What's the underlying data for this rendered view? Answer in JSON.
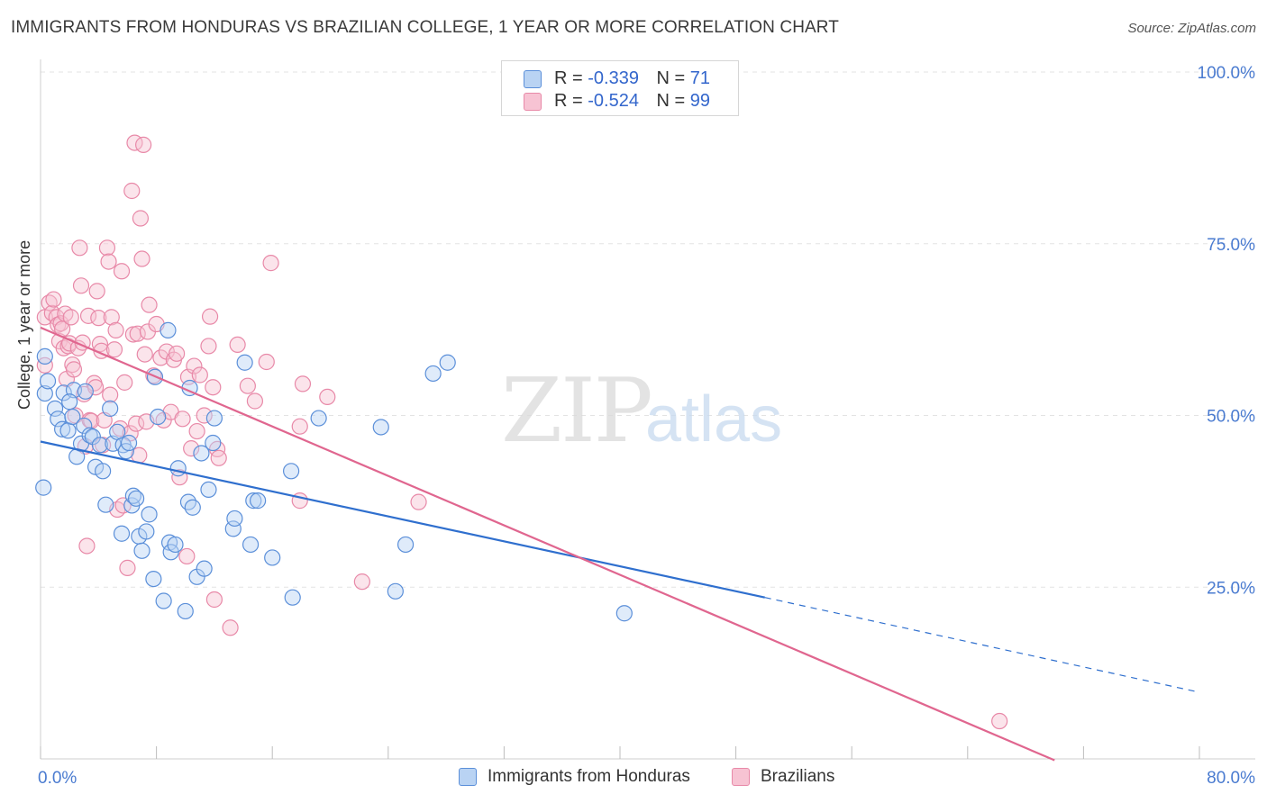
{
  "title": "IMMIGRANTS FROM HONDURAS VS BRAZILIAN COLLEGE, 1 YEAR OR MORE CORRELATION CHART",
  "source": "Source: ZipAtlas.com",
  "watermark": {
    "zip": "ZIP",
    "atlas": "atlas"
  },
  "colors": {
    "blue": "#5b8fd9",
    "blue_fill": "#b9d3f3",
    "blue_line": "#2f6fce",
    "pink": "#e889a8",
    "pink_fill": "#f7c3d3",
    "pink_line": "#e0668f",
    "axis_text": "#4a7bd0",
    "grid": "#e3e3e3"
  },
  "legend": {
    "rows": [
      {
        "r_label": "R = ",
        "r_value": "-0.339",
        "n_label": "N = ",
        "n_value": "71"
      },
      {
        "r_label": "R = ",
        "r_value": "-0.524",
        "n_label": "N = ",
        "n_value": "99"
      }
    ]
  },
  "bottom_legend": {
    "series1": "Immigrants from Honduras",
    "series2": "Brazilians"
  },
  "chart_data": {
    "type": "scatter",
    "title": "IMMIGRANTS FROM HONDURAS VS BRAZILIAN COLLEGE, 1 YEAR OR MORE CORRELATION CHART",
    "xlabel": "",
    "ylabel": "College, 1 year or more",
    "xlim": [
      0,
      80
    ],
    "ylim": [
      0,
      100
    ],
    "x_tick_labels": [
      "0.0%",
      "80.0%"
    ],
    "y_tick_labels": [
      "25.0%",
      "50.0%",
      "75.0%",
      "100.0%"
    ],
    "y_ticks": [
      25,
      50,
      75,
      100
    ],
    "x_minor_ticks": [
      0,
      8,
      16,
      24,
      32,
      40,
      48,
      56,
      64,
      72,
      80
    ],
    "grid": true,
    "legend_position": "top-center",
    "series": [
      {
        "name": "Immigrants from Honduras",
        "r": -0.339,
        "n": 71,
        "trend": {
          "x0": 0,
          "y0": 46.2,
          "x1": 50,
          "y1": 23.5,
          "dashed_to_x": 80,
          "dashed_to_y": 9.7
        },
        "points": [
          [
            0.3,
            58.6
          ],
          [
            0.3,
            53.2
          ],
          [
            0.5,
            55.0
          ],
          [
            1.0,
            51.0
          ],
          [
            1.2,
            49.5
          ],
          [
            1.5,
            48.0
          ],
          [
            1.6,
            53.3
          ],
          [
            1.9,
            47.8
          ],
          [
            2.2,
            49.8
          ],
          [
            2.3,
            53.7
          ],
          [
            2.5,
            44.0
          ],
          [
            2.8,
            45.9
          ],
          [
            3.0,
            48.5
          ],
          [
            3.1,
            53.5
          ],
          [
            3.4,
            47.1
          ],
          [
            3.6,
            46.9
          ],
          [
            3.8,
            42.5
          ],
          [
            4.1,
            45.7
          ],
          [
            4.3,
            41.9
          ],
          [
            4.5,
            37.0
          ],
          [
            4.8,
            51.0
          ],
          [
            5.0,
            45.9
          ],
          [
            5.3,
            47.6
          ],
          [
            5.6,
            32.8
          ],
          [
            5.7,
            45.7
          ],
          [
            5.9,
            44.8
          ],
          [
            6.1,
            46.0
          ],
          [
            6.3,
            36.9
          ],
          [
            6.4,
            38.3
          ],
          [
            6.6,
            37.9
          ],
          [
            6.8,
            32.4
          ],
          [
            7.0,
            30.3
          ],
          [
            7.3,
            33.1
          ],
          [
            7.5,
            35.6
          ],
          [
            7.8,
            26.2
          ],
          [
            7.9,
            55.6
          ],
          [
            8.1,
            49.8
          ],
          [
            8.5,
            23.0
          ],
          [
            8.8,
            62.4
          ],
          [
            8.9,
            31.5
          ],
          [
            9.0,
            30.1
          ],
          [
            9.3,
            31.2
          ],
          [
            9.5,
            42.3
          ],
          [
            10.0,
            21.5
          ],
          [
            10.2,
            37.4
          ],
          [
            10.3,
            54.0
          ],
          [
            10.5,
            36.6
          ],
          [
            10.8,
            26.5
          ],
          [
            11.1,
            44.5
          ],
          [
            11.3,
            27.7
          ],
          [
            11.6,
            39.2
          ],
          [
            11.9,
            46.0
          ],
          [
            12.0,
            49.6
          ],
          [
            13.3,
            33.5
          ],
          [
            13.4,
            35.0
          ],
          [
            14.1,
            57.7
          ],
          [
            14.5,
            31.2
          ],
          [
            14.7,
            37.6
          ],
          [
            15.0,
            37.6
          ],
          [
            16.0,
            29.3
          ],
          [
            17.3,
            41.9
          ],
          [
            17.4,
            23.5
          ],
          [
            19.2,
            49.6
          ],
          [
            23.5,
            48.3
          ],
          [
            24.5,
            24.4
          ],
          [
            25.2,
            31.2
          ],
          [
            27.1,
            56.1
          ],
          [
            28.1,
            57.7
          ],
          [
            40.3,
            21.2
          ],
          [
            0.2,
            39.5
          ],
          [
            2.0,
            52.0
          ]
        ]
      },
      {
        "name": "Brazilians",
        "r": -0.524,
        "n": 99,
        "trend": {
          "x0": 0,
          "y0": 62.8,
          "x1": 70,
          "y1": -0.2
        },
        "points": [
          [
            0.3,
            57.3
          ],
          [
            0.3,
            64.3
          ],
          [
            0.6,
            66.4
          ],
          [
            0.8,
            64.9
          ],
          [
            0.9,
            66.9
          ],
          [
            1.1,
            64.3
          ],
          [
            1.2,
            63.2
          ],
          [
            1.3,
            60.8
          ],
          [
            1.4,
            63.4
          ],
          [
            1.5,
            62.6
          ],
          [
            1.6,
            59.8
          ],
          [
            1.7,
            64.8
          ],
          [
            1.8,
            55.3
          ],
          [
            1.9,
            60.1
          ],
          [
            2.0,
            60.5
          ],
          [
            2.1,
            64.3
          ],
          [
            2.2,
            57.4
          ],
          [
            2.3,
            56.7
          ],
          [
            2.4,
            50.0
          ],
          [
            2.6,
            59.8
          ],
          [
            2.7,
            74.4
          ],
          [
            2.8,
            68.9
          ],
          [
            2.9,
            60.6
          ],
          [
            3.0,
            53.1
          ],
          [
            3.1,
            45.5
          ],
          [
            3.2,
            31.0
          ],
          [
            3.3,
            64.5
          ],
          [
            3.4,
            49.3
          ],
          [
            3.5,
            49.2
          ],
          [
            3.7,
            54.7
          ],
          [
            3.8,
            54.1
          ],
          [
            3.9,
            68.1
          ],
          [
            4.0,
            64.2
          ],
          [
            4.1,
            60.4
          ],
          [
            4.2,
            59.4
          ],
          [
            4.3,
            45.7
          ],
          [
            4.4,
            49.3
          ],
          [
            4.6,
            74.4
          ],
          [
            4.7,
            72.4
          ],
          [
            4.8,
            53.0
          ],
          [
            4.9,
            64.3
          ],
          [
            5.1,
            59.6
          ],
          [
            5.2,
            62.4
          ],
          [
            5.3,
            36.3
          ],
          [
            5.5,
            48.1
          ],
          [
            5.6,
            71.0
          ],
          [
            5.7,
            36.9
          ],
          [
            5.8,
            54.8
          ],
          [
            6.0,
            27.8
          ],
          [
            6.2,
            47.4
          ],
          [
            6.3,
            82.7
          ],
          [
            6.4,
            61.8
          ],
          [
            6.5,
            89.7
          ],
          [
            6.6,
            48.8
          ],
          [
            6.7,
            61.9
          ],
          [
            6.8,
            44.2
          ],
          [
            6.9,
            78.7
          ],
          [
            7.0,
            72.8
          ],
          [
            7.1,
            89.4
          ],
          [
            7.2,
            58.9
          ],
          [
            7.3,
            49.1
          ],
          [
            7.4,
            62.2
          ],
          [
            7.5,
            66.1
          ],
          [
            7.8,
            55.8
          ],
          [
            8.0,
            63.3
          ],
          [
            8.3,
            58.4
          ],
          [
            8.5,
            49.3
          ],
          [
            8.7,
            59.3
          ],
          [
            9.0,
            50.5
          ],
          [
            9.2,
            58.1
          ],
          [
            9.4,
            59.0
          ],
          [
            9.6,
            41.0
          ],
          [
            9.8,
            49.5
          ],
          [
            10.1,
            29.5
          ],
          [
            10.2,
            55.6
          ],
          [
            10.4,
            45.2
          ],
          [
            10.6,
            57.2
          ],
          [
            10.8,
            47.7
          ],
          [
            11.0,
            55.9
          ],
          [
            11.3,
            50.0
          ],
          [
            11.6,
            60.1
          ],
          [
            11.7,
            64.4
          ],
          [
            11.9,
            54.1
          ],
          [
            12.0,
            23.2
          ],
          [
            12.2,
            45.1
          ],
          [
            12.3,
            43.8
          ],
          [
            13.1,
            19.1
          ],
          [
            13.6,
            60.3
          ],
          [
            14.3,
            54.3
          ],
          [
            14.8,
            52.1
          ],
          [
            15.6,
            57.8
          ],
          [
            15.9,
            72.2
          ],
          [
            17.9,
            37.6
          ],
          [
            17.9,
            48.4
          ],
          [
            18.1,
            54.6
          ],
          [
            19.8,
            52.7
          ],
          [
            22.2,
            25.8
          ],
          [
            26.1,
            37.4
          ],
          [
            66.2,
            5.5
          ]
        ]
      }
    ]
  }
}
